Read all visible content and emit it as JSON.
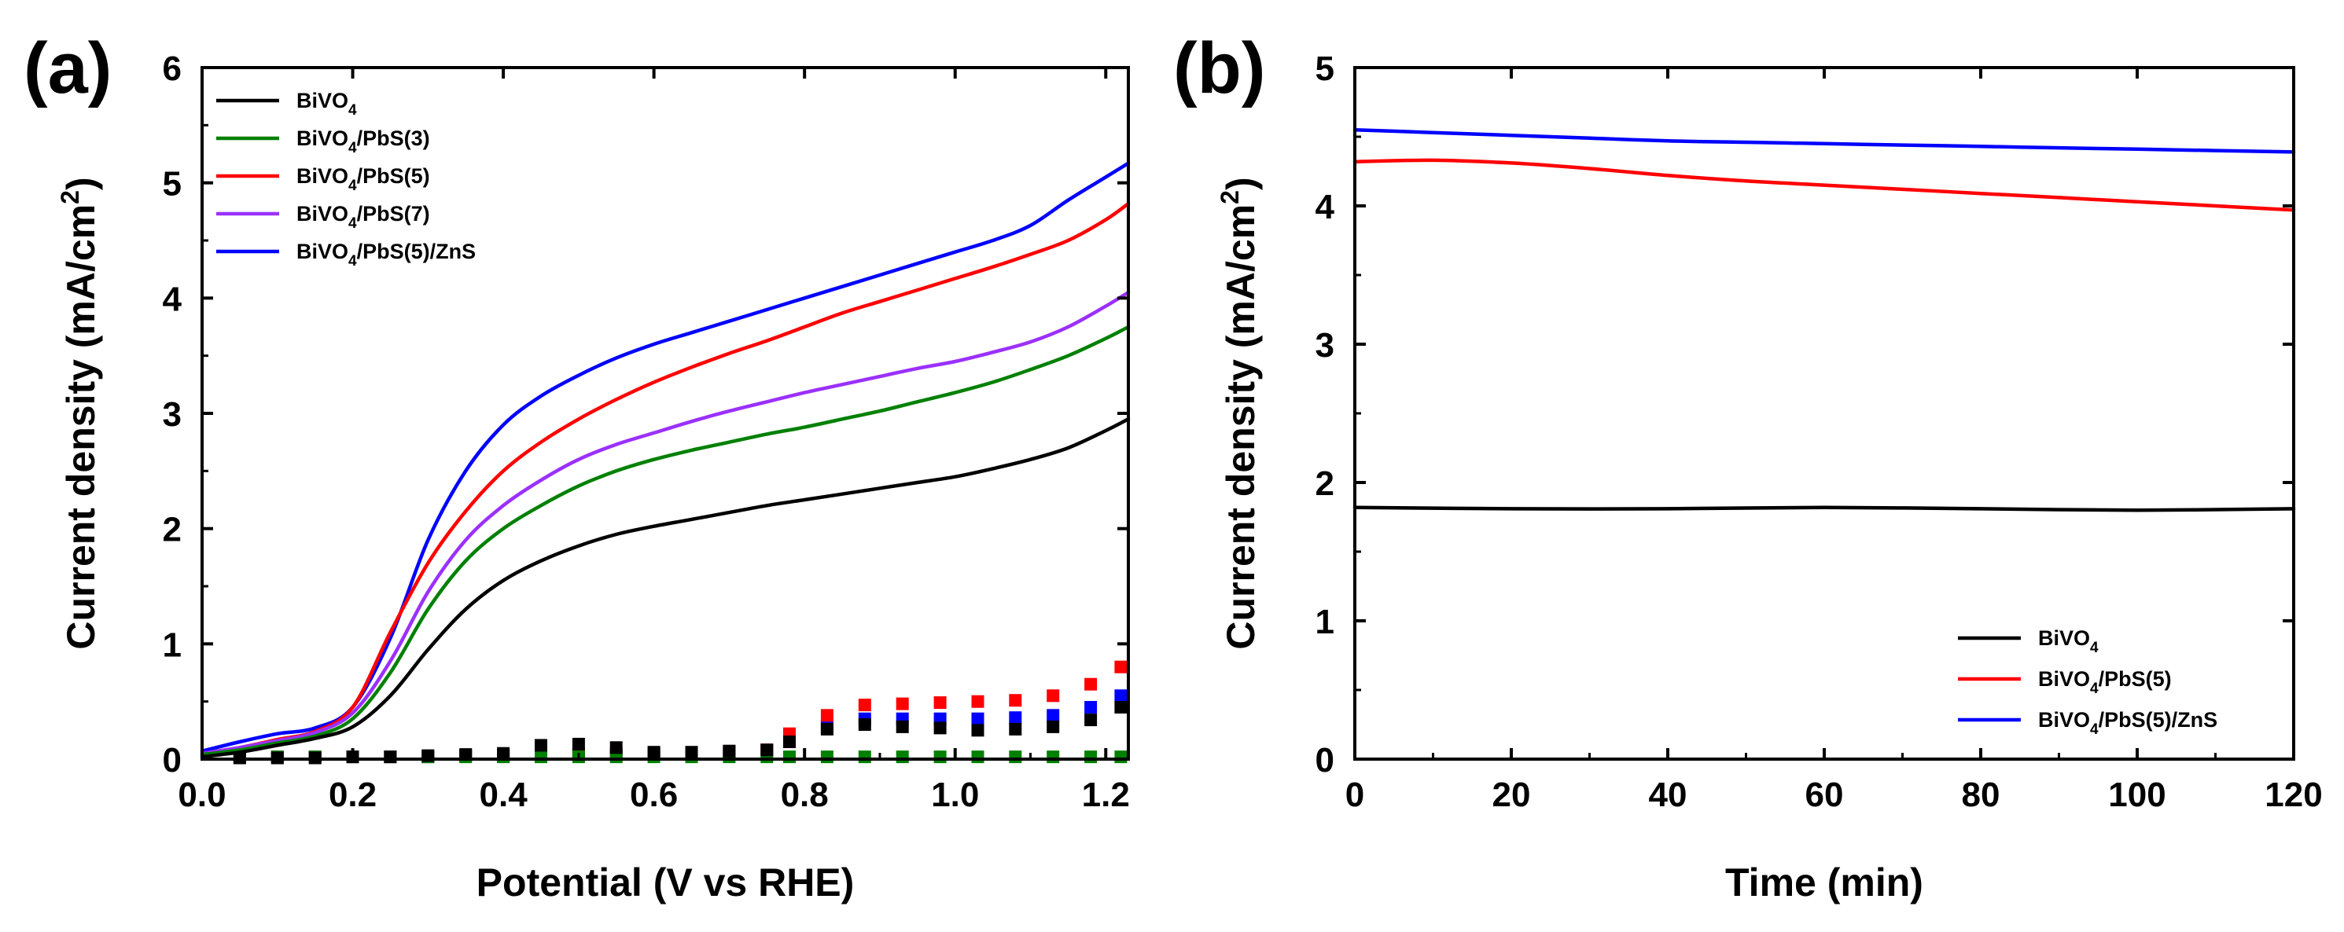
{
  "chart_data": [
    {
      "type": "line",
      "panel": "(a)",
      "xlabel": "Potential (V vs RHE)",
      "ylabel": "Current density",
      "ylabel_unit": "(mA/cm",
      "ylabel_unit_sup": "2",
      "ylabel_unit_close": ")",
      "xlim": [
        0,
        1.23
      ],
      "ylim": [
        0,
        6
      ],
      "xticks": [
        0.0,
        0.2,
        0.4,
        0.6,
        0.8,
        1.0,
        1.2
      ],
      "xtick_labels": [
        "0.0",
        "0.2",
        "0.4",
        "0.6",
        "0.8",
        "1.0",
        "1.2"
      ],
      "yticks": [
        0,
        1,
        2,
        3,
        4,
        5,
        6
      ],
      "ytick_labels": [
        "0",
        "1",
        "2",
        "3",
        "4",
        "5",
        "6"
      ],
      "legend_position": "top-left",
      "series": [
        {
          "name": "BiVO4/PbS(5)/ZnS",
          "legend_main": "BiVO",
          "legend_sub": "4",
          "legend_rest": "/PbS(5)/ZnS",
          "color": "#0000ff",
          "light": {
            "x": [
              0,
              0.05,
              0.1,
              0.15,
              0.2,
              0.25,
              0.3,
              0.35,
              0.4,
              0.45,
              0.5,
              0.55,
              0.6,
              0.65,
              0.7,
              0.75,
              0.8,
              0.85,
              0.9,
              0.95,
              1.0,
              1.05,
              1.1,
              1.15,
              1.2,
              1.23
            ],
            "y": [
              0.07,
              0.15,
              0.22,
              0.27,
              0.45,
              1.05,
              1.9,
              2.5,
              2.9,
              3.15,
              3.33,
              3.48,
              3.6,
              3.7,
              3.8,
              3.9,
              4.0,
              4.1,
              4.2,
              4.3,
              4.4,
              4.5,
              4.63,
              4.85,
              5.05,
              5.17
            ]
          },
          "dark": {
            "x": [
              0.05,
              0.1,
              0.15,
              0.2,
              0.25,
              0.3,
              0.35,
              0.4,
              0.45,
              0.5,
              0.55,
              0.6,
              0.65,
              0.7,
              0.75,
              0.78,
              0.83,
              0.88,
              0.93,
              0.98,
              1.03,
              1.08,
              1.13,
              1.18,
              1.22
            ],
            "y": [
              0.02,
              0.02,
              0.02,
              0.02,
              0.02,
              0.02,
              0.03,
              0.03,
              0.04,
              0.04,
              0.04,
              0.05,
              0.05,
              0.06,
              0.08,
              0.15,
              0.28,
              0.35,
              0.35,
              0.35,
              0.35,
              0.36,
              0.38,
              0.45,
              0.55
            ]
          }
        },
        {
          "name": "BiVO4/PbS(5)",
          "legend_main": "BiVO",
          "legend_sub": "4",
          "legend_rest": "/PbS(5)",
          "color": "#ff0000",
          "light": {
            "x": [
              0,
              0.05,
              0.1,
              0.15,
              0.2,
              0.25,
              0.3,
              0.35,
              0.4,
              0.45,
              0.5,
              0.55,
              0.6,
              0.65,
              0.7,
              0.75,
              0.8,
              0.85,
              0.9,
              0.95,
              1.0,
              1.05,
              1.1,
              1.15,
              1.2,
              1.23
            ],
            "y": [
              0.05,
              0.1,
              0.17,
              0.24,
              0.45,
              1.1,
              1.7,
              2.15,
              2.5,
              2.75,
              2.95,
              3.12,
              3.27,
              3.4,
              3.52,
              3.63,
              3.75,
              3.87,
              3.97,
              4.07,
              4.17,
              4.27,
              4.38,
              4.5,
              4.68,
              4.82
            ]
          },
          "dark": {
            "x": [
              0.05,
              0.1,
              0.15,
              0.2,
              0.25,
              0.3,
              0.35,
              0.4,
              0.45,
              0.5,
              0.55,
              0.6,
              0.65,
              0.7,
              0.75,
              0.78,
              0.83,
              0.88,
              0.93,
              0.98,
              1.03,
              1.08,
              1.13,
              1.18,
              1.22
            ],
            "y": [
              0.02,
              0.02,
              0.02,
              0.02,
              0.02,
              0.02,
              0.03,
              0.03,
              0.04,
              0.04,
              0.04,
              0.05,
              0.05,
              0.06,
              0.08,
              0.22,
              0.38,
              0.47,
              0.48,
              0.49,
              0.5,
              0.51,
              0.55,
              0.65,
              0.8
            ]
          }
        },
        {
          "name": "BiVO4/PbS(7)",
          "legend_main": "BiVO",
          "legend_sub": "4",
          "legend_rest": "/PbS(7)",
          "color": "#9b30ff",
          "light": {
            "x": [
              0,
              0.05,
              0.1,
              0.15,
              0.2,
              0.25,
              0.3,
              0.35,
              0.4,
              0.45,
              0.5,
              0.55,
              0.6,
              0.65,
              0.7,
              0.75,
              0.8,
              0.85,
              0.9,
              0.95,
              1.0,
              1.05,
              1.1,
              1.15,
              1.2,
              1.23
            ],
            "y": [
              0.05,
              0.1,
              0.16,
              0.23,
              0.4,
              0.85,
              1.45,
              1.9,
              2.2,
              2.42,
              2.6,
              2.73,
              2.83,
              2.93,
              3.02,
              3.1,
              3.18,
              3.25,
              3.32,
              3.39,
              3.45,
              3.53,
              3.62,
              3.75,
              3.93,
              4.05
            ]
          }
        },
        {
          "name": "BiVO4/PbS(3)",
          "legend_main": "BiVO",
          "legend_sub": "4",
          "legend_rest": "/PbS(3)",
          "color": "#008000",
          "light": {
            "x": [
              0,
              0.05,
              0.1,
              0.15,
              0.2,
              0.25,
              0.3,
              0.35,
              0.4,
              0.45,
              0.5,
              0.55,
              0.6,
              0.65,
              0.7,
              0.75,
              0.8,
              0.85,
              0.9,
              0.95,
              1.0,
              1.05,
              1.1,
              1.15,
              1.2,
              1.23
            ],
            "y": [
              0.04,
              0.08,
              0.14,
              0.2,
              0.35,
              0.75,
              1.3,
              1.72,
              2.0,
              2.2,
              2.37,
              2.5,
              2.6,
              2.68,
              2.75,
              2.82,
              2.88,
              2.95,
              3.02,
              3.1,
              3.18,
              3.27,
              3.38,
              3.5,
              3.65,
              3.75
            ]
          },
          "dark": {
            "x": [
              0.05,
              0.1,
              0.15,
              0.2,
              0.25,
              0.3,
              0.35,
              0.4,
              0.45,
              0.5,
              0.55,
              0.6,
              0.65,
              0.7,
              0.75,
              0.78,
              0.83,
              0.88,
              0.93,
              0.98,
              1.03,
              1.08,
              1.13,
              1.18,
              1.22
            ],
            "y": [
              0.02,
              0.02,
              0.02,
              0.02,
              0.02,
              0.02,
              0.02,
              0.02,
              0.02,
              0.02,
              0.02,
              0.02,
              0.02,
              0.02,
              0.02,
              0.02,
              0.02,
              0.02,
              0.02,
              0.02,
              0.02,
              0.02,
              0.02,
              0.02,
              0.02
            ]
          }
        },
        {
          "name": "BiVO4",
          "legend_main": "BiVO",
          "legend_sub": "4",
          "legend_rest": "",
          "color": "#000000",
          "light": {
            "x": [
              0,
              0.05,
              0.1,
              0.15,
              0.2,
              0.25,
              0.3,
              0.35,
              0.4,
              0.45,
              0.5,
              0.55,
              0.6,
              0.65,
              0.7,
              0.75,
              0.8,
              0.85,
              0.9,
              0.95,
              1.0,
              1.05,
              1.1,
              1.15,
              1.2,
              1.23
            ],
            "y": [
              0.02,
              0.06,
              0.12,
              0.18,
              0.28,
              0.55,
              0.95,
              1.3,
              1.55,
              1.72,
              1.85,
              1.95,
              2.02,
              2.08,
              2.14,
              2.2,
              2.25,
              2.3,
              2.35,
              2.4,
              2.45,
              2.52,
              2.6,
              2.7,
              2.85,
              2.95
            ]
          },
          "dark": {
            "x": [
              0.05,
              0.1,
              0.15,
              0.2,
              0.25,
              0.3,
              0.35,
              0.4,
              0.45,
              0.5,
              0.55,
              0.6,
              0.65,
              0.7,
              0.75,
              0.78,
              0.83,
              0.88,
              0.93,
              0.98,
              1.03,
              1.08,
              1.13,
              1.18,
              1.22
            ],
            "y": [
              0.01,
              0.01,
              0.01,
              0.02,
              0.02,
              0.03,
              0.04,
              0.05,
              0.12,
              0.13,
              0.1,
              0.06,
              0.06,
              0.07,
              0.08,
              0.15,
              0.26,
              0.3,
              0.28,
              0.27,
              0.25,
              0.26,
              0.28,
              0.34,
              0.45
            ]
          }
        }
      ],
      "legend_order": [
        "BiVO4",
        "BiVO4/PbS(3)",
        "BiVO4/PbS(5)",
        "BiVO4/PbS(7)",
        "BiVO4/PbS(5)/ZnS"
      ]
    },
    {
      "type": "line",
      "panel": "(b)",
      "xlabel": "Time (min)",
      "ylabel": "Current density",
      "ylabel_unit": "(mA/cm",
      "ylabel_unit_sup": "2",
      "ylabel_unit_close": ")",
      "xlim": [
        0,
        120
      ],
      "ylim": [
        0,
        5
      ],
      "xticks": [
        0,
        20,
        40,
        60,
        80,
        100,
        120
      ],
      "xtick_labels": [
        "0",
        "20",
        "40",
        "60",
        "80",
        "100",
        "120"
      ],
      "yticks": [
        0,
        1,
        2,
        3,
        4,
        5
      ],
      "ytick_labels": [
        "0",
        "1",
        "2",
        "3",
        "4",
        "5"
      ],
      "legend_position": "bottom-right",
      "series": [
        {
          "name": "BiVO4",
          "legend_main": "BiVO",
          "legend_sub": "4",
          "legend_rest": "",
          "color": "#000000",
          "x": [
            0,
            20,
            40,
            60,
            80,
            100,
            120
          ],
          "y": [
            1.82,
            1.81,
            1.81,
            1.82,
            1.81,
            1.8,
            1.81
          ]
        },
        {
          "name": "BiVO4/PbS(5)",
          "legend_main": "BiVO",
          "legend_sub": "4",
          "legend_rest": "/PbS(5)",
          "color": "#ff0000",
          "x": [
            0,
            10,
            20,
            30,
            40,
            50,
            60,
            70,
            80,
            90,
            100,
            110,
            120
          ],
          "y": [
            4.32,
            4.33,
            4.31,
            4.27,
            4.22,
            4.18,
            4.15,
            4.12,
            4.09,
            4.06,
            4.03,
            4.0,
            3.97
          ]
        },
        {
          "name": "BiVO4/PbS(5)/ZnS",
          "legend_main": "BiVO",
          "legend_sub": "4",
          "legend_rest": "/PbS(5)/ZnS",
          "color": "#0000ff",
          "x": [
            0,
            10,
            20,
            30,
            40,
            50,
            60,
            70,
            80,
            90,
            100,
            110,
            120
          ],
          "y": [
            4.55,
            4.53,
            4.51,
            4.49,
            4.47,
            4.46,
            4.45,
            4.44,
            4.43,
            4.42,
            4.41,
            4.4,
            4.39
          ]
        }
      ],
      "legend_order": [
        "BiVO4",
        "BiVO4/PbS(5)",
        "BiVO4/PbS(5)/ZnS"
      ]
    }
  ]
}
